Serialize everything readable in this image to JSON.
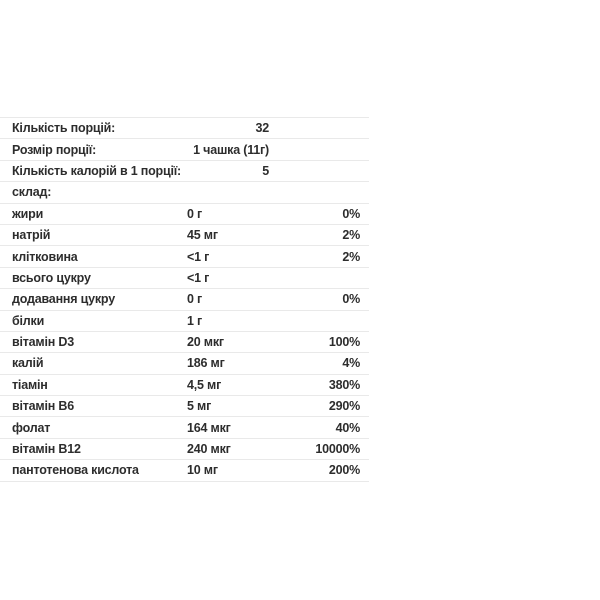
{
  "table": {
    "summary_rows": [
      {
        "label": "Кількість порцій:",
        "value": "32"
      },
      {
        "label": "Розмір порції:",
        "value": "1 чашка (11г)"
      },
      {
        "label": "Кількість калорій в 1 порції:",
        "value": "5"
      }
    ],
    "section_header": "склад:",
    "nutrient_rows": [
      {
        "label": "жири",
        "amount": "0 г",
        "dv": "0%"
      },
      {
        "label": "натрій",
        "amount": "45 мг",
        "dv": "2%"
      },
      {
        "label": "клітковина",
        "amount": "<1 г",
        "dv": "2%"
      },
      {
        "label": "всього цукру",
        "amount": "<1 г",
        "dv": ""
      },
      {
        "label": "додавання цукру",
        "amount": "0 г",
        "dv": "0%"
      },
      {
        "label": "білки",
        "amount": "1 г",
        "dv": ""
      },
      {
        "label": "вітамін D3",
        "amount": "20 мкг",
        "dv": "100%"
      },
      {
        "label": "калій",
        "amount": "186 мг",
        "dv": "4%"
      },
      {
        "label": "тіамін",
        "amount": "4,5 мг",
        "dv": "380%"
      },
      {
        "label": "вітамін B6",
        "amount": "5 мг",
        "dv": "290%"
      },
      {
        "label": "фолат",
        "amount": "164 мкг",
        "dv": "40%"
      },
      {
        "label": "вітамін B12",
        "amount": "240 мкг",
        "dv": "10000%"
      },
      {
        "label": "пантотенова кислота",
        "amount": "10 мг",
        "dv": "200%"
      }
    ],
    "colors": {
      "text": "#2d2d2d",
      "divider": "#e9e9e9",
      "background": "#ffffff"
    }
  }
}
